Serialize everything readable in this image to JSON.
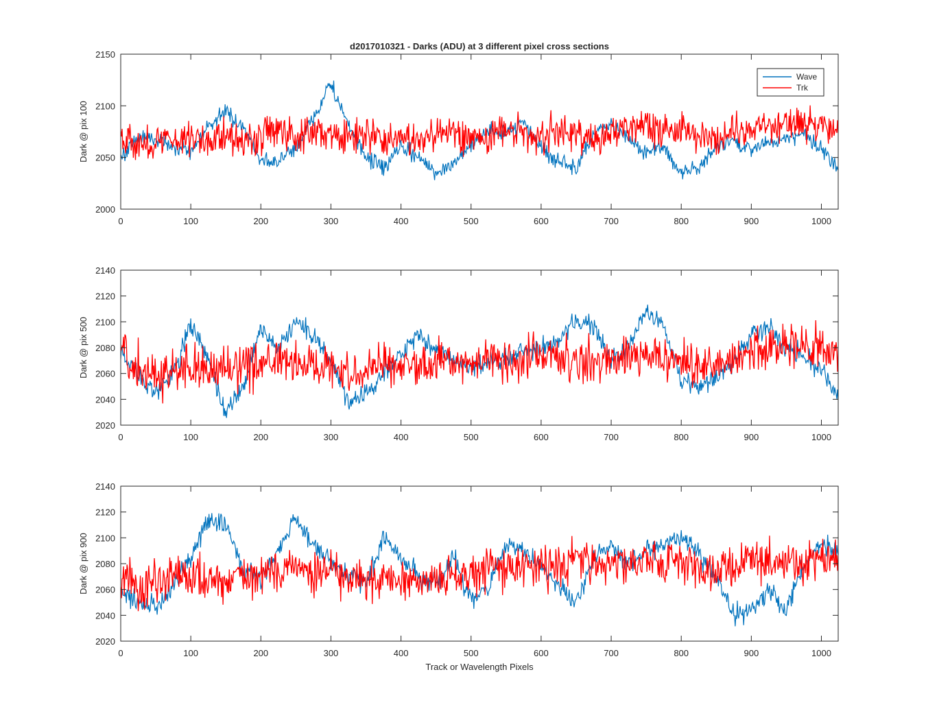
{
  "chart_data": [
    {
      "type": "line",
      "title": "d2017010321 - Darks (ADU) at 3 different pixel cross sections",
      "xlabel": "",
      "ylabel": "Dark @ pix 100",
      "xlim": [
        0,
        1024
      ],
      "ylim": [
        2000,
        2150
      ],
      "xticks": [
        0,
        100,
        200,
        300,
        400,
        500,
        600,
        700,
        800,
        900,
        1000
      ],
      "yticks": [
        2000,
        2050,
        2100,
        2150
      ],
      "legend": {
        "position": "top-right",
        "entries": [
          "Wave",
          "Trk"
        ]
      },
      "series": [
        {
          "name": "Wave",
          "color": "#0072bd",
          "x": [
            0,
            25,
            50,
            75,
            100,
            125,
            150,
            175,
            200,
            225,
            250,
            275,
            300,
            325,
            350,
            375,
            400,
            425,
            450,
            475,
            500,
            525,
            550,
            575,
            600,
            625,
            650,
            675,
            700,
            725,
            750,
            775,
            800,
            825,
            850,
            875,
            900,
            925,
            950,
            975,
            1000,
            1024
          ],
          "y": [
            2050,
            2070,
            2068,
            2062,
            2055,
            2080,
            2095,
            2078,
            2048,
            2045,
            2060,
            2088,
            2122,
            2080,
            2050,
            2040,
            2060,
            2050,
            2035,
            2045,
            2062,
            2078,
            2072,
            2085,
            2060,
            2045,
            2040,
            2072,
            2080,
            2068,
            2055,
            2060,
            2035,
            2040,
            2060,
            2065,
            2058,
            2065,
            2070,
            2072,
            2060,
            2040
          ]
        },
        {
          "name": "Trk",
          "color": "#ff0000",
          "x": [
            0,
            25,
            50,
            75,
            100,
            125,
            150,
            175,
            200,
            225,
            250,
            275,
            300,
            325,
            350,
            375,
            400,
            425,
            450,
            475,
            500,
            525,
            550,
            575,
            600,
            625,
            650,
            675,
            700,
            725,
            750,
            775,
            800,
            825,
            850,
            875,
            900,
            925,
            950,
            975,
            1000,
            1024
          ],
          "y": [
            2075,
            2060,
            2065,
            2068,
            2070,
            2066,
            2072,
            2068,
            2070,
            2075,
            2072,
            2078,
            2070,
            2068,
            2072,
            2068,
            2070,
            2065,
            2072,
            2075,
            2068,
            2070,
            2078,
            2072,
            2070,
            2075,
            2072,
            2068,
            2072,
            2080,
            2082,
            2078,
            2075,
            2072,
            2070,
            2075,
            2082,
            2080,
            2085,
            2082,
            2080,
            2078
          ]
        }
      ]
    },
    {
      "type": "line",
      "title": "",
      "xlabel": "",
      "ylabel": "Dark @ pix 500",
      "xlim": [
        0,
        1024
      ],
      "ylim": [
        2020,
        2140
      ],
      "xticks": [
        0,
        100,
        200,
        300,
        400,
        500,
        600,
        700,
        800,
        900,
        1000
      ],
      "yticks": [
        2020,
        2040,
        2060,
        2080,
        2100,
        2120,
        2140
      ],
      "series": [
        {
          "name": "Wave",
          "color": "#0072bd",
          "x": [
            0,
            25,
            50,
            75,
            100,
            125,
            150,
            175,
            200,
            225,
            250,
            275,
            300,
            325,
            350,
            375,
            400,
            425,
            450,
            475,
            500,
            525,
            550,
            575,
            600,
            625,
            650,
            675,
            700,
            725,
            750,
            775,
            800,
            825,
            850,
            875,
            900,
            925,
            950,
            975,
            1000,
            1024
          ],
          "y": [
            2078,
            2060,
            2045,
            2060,
            2098,
            2070,
            2028,
            2050,
            2095,
            2080,
            2100,
            2088,
            2070,
            2035,
            2045,
            2060,
            2075,
            2090,
            2078,
            2070,
            2065,
            2068,
            2072,
            2078,
            2080,
            2085,
            2100,
            2095,
            2070,
            2080,
            2110,
            2095,
            2055,
            2050,
            2058,
            2068,
            2090,
            2095,
            2080,
            2075,
            2060,
            2045
          ]
        },
        {
          "name": "Trk",
          "color": "#ff0000",
          "x": [
            0,
            25,
            50,
            75,
            100,
            125,
            150,
            175,
            200,
            225,
            250,
            275,
            300,
            325,
            350,
            375,
            400,
            425,
            450,
            475,
            500,
            525,
            550,
            575,
            600,
            625,
            650,
            675,
            700,
            725,
            750,
            775,
            800,
            825,
            850,
            875,
            900,
            925,
            950,
            975,
            1000,
            1024
          ],
          "y": [
            2080,
            2065,
            2058,
            2062,
            2065,
            2060,
            2062,
            2065,
            2068,
            2070,
            2065,
            2068,
            2065,
            2062,
            2065,
            2068,
            2066,
            2065,
            2068,
            2070,
            2068,
            2072,
            2070,
            2072,
            2075,
            2070,
            2072,
            2068,
            2072,
            2075,
            2072,
            2070,
            2068,
            2065,
            2068,
            2070,
            2075,
            2078,
            2080,
            2082,
            2080,
            2078
          ]
        }
      ]
    },
    {
      "type": "line",
      "title": "",
      "xlabel": "Track or Wavelength Pixels",
      "ylabel": "Dark @ pix 900",
      "xlim": [
        0,
        1024
      ],
      "ylim": [
        2020,
        2140
      ],
      "xticks": [
        0,
        100,
        200,
        300,
        400,
        500,
        600,
        700,
        800,
        900,
        1000
      ],
      "yticks": [
        2020,
        2040,
        2060,
        2080,
        2100,
        2120,
        2140
      ],
      "series": [
        {
          "name": "Wave",
          "color": "#0072bd",
          "x": [
            0,
            25,
            50,
            75,
            100,
            125,
            150,
            175,
            200,
            225,
            250,
            275,
            300,
            325,
            350,
            375,
            400,
            425,
            450,
            475,
            500,
            525,
            550,
            575,
            600,
            625,
            650,
            675,
            700,
            725,
            750,
            775,
            800,
            825,
            850,
            875,
            900,
            925,
            950,
            975,
            1000,
            1024
          ],
          "y": [
            2058,
            2050,
            2045,
            2065,
            2085,
            2115,
            2110,
            2075,
            2070,
            2090,
            2115,
            2095,
            2082,
            2070,
            2065,
            2100,
            2085,
            2070,
            2065,
            2085,
            2050,
            2060,
            2095,
            2090,
            2080,
            2060,
            2050,
            2085,
            2095,
            2080,
            2090,
            2095,
            2100,
            2088,
            2070,
            2040,
            2045,
            2060,
            2045,
            2080,
            2095,
            2090
          ]
        },
        {
          "name": "Trk",
          "color": "#ff0000",
          "x": [
            0,
            25,
            50,
            75,
            100,
            125,
            150,
            175,
            200,
            225,
            250,
            275,
            300,
            325,
            350,
            375,
            400,
            425,
            450,
            475,
            500,
            525,
            550,
            575,
            600,
            625,
            650,
            675,
            700,
            725,
            750,
            775,
            800,
            825,
            850,
            875,
            900,
            925,
            950,
            975,
            1000,
            1024
          ],
          "y": [
            2068,
            2062,
            2065,
            2070,
            2072,
            2068,
            2065,
            2068,
            2072,
            2075,
            2078,
            2072,
            2075,
            2070,
            2068,
            2066,
            2068,
            2065,
            2068,
            2070,
            2072,
            2075,
            2078,
            2075,
            2080,
            2078,
            2082,
            2080,
            2082,
            2080,
            2078,
            2080,
            2082,
            2078,
            2075,
            2078,
            2082,
            2080,
            2085,
            2082,
            2085,
            2082
          ]
        }
      ]
    }
  ]
}
